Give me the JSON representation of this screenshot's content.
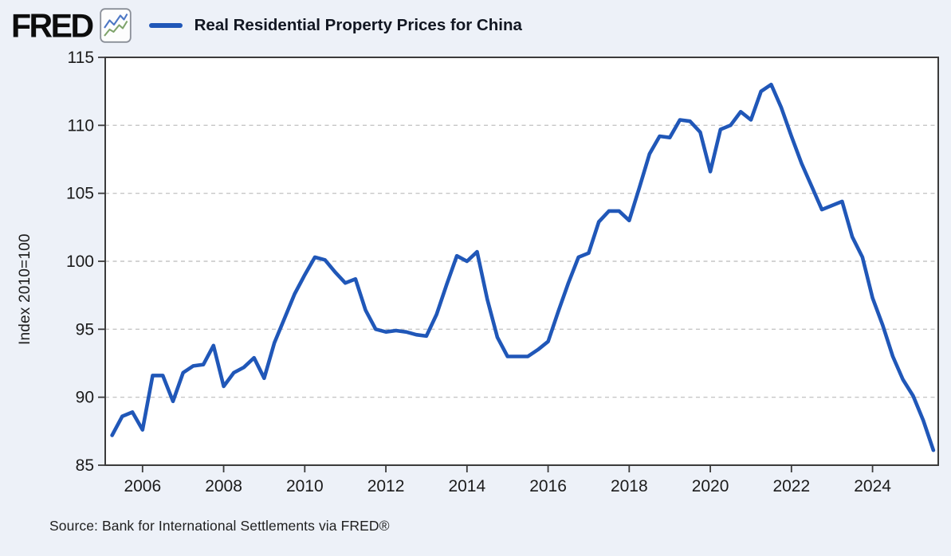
{
  "header": {
    "logo_text": "FRED",
    "title": "Real Residential Property Prices for China"
  },
  "source": {
    "text": "Source: Bank for International Settlements via FRED®"
  },
  "chart_data": {
    "type": "line",
    "title": "Real Residential Property Prices for China",
    "xlabel": "",
    "ylabel": "Index 2010=100",
    "frequency": "quarterly",
    "x_ticks": [
      2006,
      2008,
      2010,
      2012,
      2014,
      2016,
      2018,
      2020,
      2022,
      2024
    ],
    "y_ticks": [
      85,
      90,
      95,
      100,
      105,
      110,
      115
    ],
    "xlim": [
      2005.08,
      2025.62
    ],
    "ylim": [
      85,
      115
    ],
    "grid": "horizontal-dashed",
    "legend_position": "top-left",
    "colors": {
      "line": "#2057b8",
      "grid": "#c6c6c6",
      "frame": "#3b3b3b",
      "background": "#edf1f8",
      "plot_background": "#ffffff"
    },
    "series": [
      {
        "name": "Real Residential Property Prices for China",
        "color": "#2057b8",
        "points": [
          [
            2005.25,
            87.2
          ],
          [
            2005.5,
            88.6
          ],
          [
            2005.75,
            88.9
          ],
          [
            2006.0,
            87.6
          ],
          [
            2006.25,
            91.6
          ],
          [
            2006.5,
            91.6
          ],
          [
            2006.75,
            89.7
          ],
          [
            2007.0,
            91.8
          ],
          [
            2007.25,
            92.3
          ],
          [
            2007.5,
            92.4
          ],
          [
            2007.75,
            93.8
          ],
          [
            2008.0,
            90.8
          ],
          [
            2008.25,
            91.8
          ],
          [
            2008.5,
            92.2
          ],
          [
            2008.75,
            92.9
          ],
          [
            2009.0,
            91.4
          ],
          [
            2009.25,
            94.0
          ],
          [
            2009.5,
            95.8
          ],
          [
            2009.75,
            97.6
          ],
          [
            2010.0,
            99.0
          ],
          [
            2010.25,
            100.3
          ],
          [
            2010.5,
            100.1
          ],
          [
            2010.75,
            99.2
          ],
          [
            2011.0,
            98.4
          ],
          [
            2011.25,
            98.7
          ],
          [
            2011.5,
            96.4
          ],
          [
            2011.75,
            95.0
          ],
          [
            2012.0,
            94.8
          ],
          [
            2012.25,
            94.9
          ],
          [
            2012.5,
            94.8
          ],
          [
            2012.75,
            94.6
          ],
          [
            2013.0,
            94.5
          ],
          [
            2013.25,
            96.1
          ],
          [
            2013.5,
            98.3
          ],
          [
            2013.75,
            100.4
          ],
          [
            2014.0,
            100.0
          ],
          [
            2014.25,
            100.7
          ],
          [
            2014.5,
            97.2
          ],
          [
            2014.75,
            94.4
          ],
          [
            2015.0,
            93.0
          ],
          [
            2015.25,
            93.0
          ],
          [
            2015.5,
            93.0
          ],
          [
            2015.75,
            93.5
          ],
          [
            2016.0,
            94.1
          ],
          [
            2016.25,
            96.3
          ],
          [
            2016.5,
            98.4
          ],
          [
            2016.75,
            100.3
          ],
          [
            2017.0,
            100.6
          ],
          [
            2017.25,
            102.9
          ],
          [
            2017.5,
            103.7
          ],
          [
            2017.75,
            103.7
          ],
          [
            2018.0,
            103.0
          ],
          [
            2018.25,
            105.4
          ],
          [
            2018.5,
            107.9
          ],
          [
            2018.75,
            109.2
          ],
          [
            2019.0,
            109.1
          ],
          [
            2019.25,
            110.4
          ],
          [
            2019.5,
            110.3
          ],
          [
            2019.75,
            109.5
          ],
          [
            2020.0,
            106.6
          ],
          [
            2020.25,
            109.7
          ],
          [
            2020.5,
            110.0
          ],
          [
            2020.75,
            111.0
          ],
          [
            2021.0,
            110.4
          ],
          [
            2021.25,
            112.5
          ],
          [
            2021.5,
            113.0
          ],
          [
            2021.75,
            111.3
          ],
          [
            2022.0,
            109.2
          ],
          [
            2022.25,
            107.2
          ],
          [
            2022.5,
            105.5
          ],
          [
            2022.75,
            103.8
          ],
          [
            2023.0,
            104.1
          ],
          [
            2023.25,
            104.4
          ],
          [
            2023.5,
            101.8
          ],
          [
            2023.75,
            100.3
          ],
          [
            2024.0,
            97.3
          ],
          [
            2024.25,
            95.3
          ],
          [
            2024.5,
            93.0
          ],
          [
            2024.75,
            91.3
          ],
          [
            2025.0,
            90.1
          ],
          [
            2025.25,
            88.3
          ],
          [
            2025.5,
            86.1
          ]
        ]
      }
    ]
  }
}
